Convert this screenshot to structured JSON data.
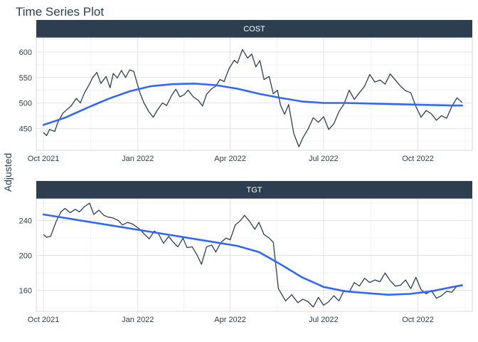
{
  "title": "Time Series Plot",
  "ylabel": "Adjusted",
  "colors": {
    "strip": "#2c3e50",
    "line": "#2c3e50",
    "smooth": "#3366ff"
  },
  "chart_data": [
    {
      "type": "line",
      "facet": "COST",
      "x_ticks": [
        "Oct 2021",
        "Jan 2022",
        "Apr 2022",
        "Jul 2022",
        "Oct 2022"
      ],
      "x_tick_dates": [
        "2021-10-01",
        "2022-01-01",
        "2022-04-01",
        "2022-07-01",
        "2022-10-01"
      ],
      "xlim": [
        "2021-09-24",
        "2022-11-23"
      ],
      "ylim": [
        407,
        628
      ],
      "y_ticks": [
        450,
        500,
        550,
        600
      ],
      "series": [
        {
          "x": [
            "2021-10-01",
            "2021-10-04",
            "2021-10-07",
            "2021-10-12",
            "2021-10-15",
            "2021-10-20",
            "2021-10-25",
            "2021-10-28",
            "2021-11-02",
            "2021-11-06",
            "2021-11-10",
            "2021-11-14",
            "2021-11-18",
            "2021-11-22",
            "2021-11-26",
            "2021-12-01",
            "2021-12-05",
            "2021-12-08",
            "2021-12-12",
            "2021-12-16",
            "2021-12-20",
            "2021-12-24",
            "2021-12-28",
            "2022-01-03",
            "2022-01-07",
            "2022-01-12",
            "2022-01-16",
            "2022-01-20",
            "2022-01-25",
            "2022-01-29",
            "2022-02-03",
            "2022-02-07",
            "2022-02-11",
            "2022-02-15",
            "2022-02-19",
            "2022-02-24",
            "2022-03-01",
            "2022-03-05",
            "2022-03-09",
            "2022-03-14",
            "2022-03-18",
            "2022-03-22",
            "2022-03-26",
            "2022-03-31",
            "2022-04-05",
            "2022-04-08",
            "2022-04-13",
            "2022-04-18",
            "2022-04-22",
            "2022-04-26",
            "2022-04-30",
            "2022-05-04",
            "2022-05-09",
            "2022-05-13",
            "2022-05-17",
            "2022-05-20",
            "2022-05-24",
            "2022-05-28",
            "2022-06-02",
            "2022-06-07",
            "2022-06-11",
            "2022-06-16",
            "2022-06-21",
            "2022-06-26",
            "2022-07-01",
            "2022-07-06",
            "2022-07-11",
            "2022-07-16",
            "2022-07-21",
            "2022-07-26",
            "2022-07-31",
            "2022-08-05",
            "2022-08-10",
            "2022-08-15",
            "2022-08-20",
            "2022-08-25",
            "2022-08-30",
            "2022-09-04",
            "2022-09-09",
            "2022-09-14",
            "2022-09-19",
            "2022-09-24",
            "2022-09-29",
            "2022-10-04",
            "2022-10-09",
            "2022-10-14",
            "2022-10-19",
            "2022-10-24",
            "2022-10-29",
            "2022-11-03",
            "2022-11-08",
            "2022-11-13"
          ],
          "y": [
            442,
            436,
            448,
            444,
            462,
            480,
            489,
            494,
            509,
            500,
            520,
            534,
            550,
            560,
            538,
            552,
            530,
            558,
            549,
            564,
            550,
            565,
            562,
            520,
            500,
            482,
            472,
            486,
            500,
            495,
            515,
            527,
            512,
            516,
            525,
            512,
            505,
            494,
            517,
            528,
            533,
            546,
            542,
            568,
            584,
            578,
            605,
            588,
            596,
            571,
            583,
            546,
            552,
            518,
            525,
            496,
            478,
            497,
            440,
            414,
            432,
            449,
            471,
            462,
            473,
            448,
            459,
            483,
            498,
            525,
            507,
            520,
            533,
            556,
            541,
            545,
            537,
            557,
            545,
            533,
            524,
            520,
            493,
            472,
            485,
            479,
            466,
            475,
            470,
            493,
            510,
            501
          ],
          "smooth_x": [
            "2021-10-01",
            "2021-10-22",
            "2021-11-12",
            "2021-12-03",
            "2021-12-24",
            "2022-01-14",
            "2022-02-04",
            "2022-02-25",
            "2022-03-18",
            "2022-04-08",
            "2022-04-29",
            "2022-05-20",
            "2022-06-10",
            "2022-07-01",
            "2022-07-22",
            "2022-08-12",
            "2022-09-02",
            "2022-09-23",
            "2022-10-14",
            "2022-11-04",
            "2022-11-13"
          ],
          "smooth_y": [
            457,
            471,
            490,
            508,
            523,
            533,
            537,
            538,
            535,
            528,
            518,
            510,
            503,
            500,
            500,
            499,
            498,
            497,
            496,
            495,
            495
          ]
        }
      ]
    },
    {
      "type": "line",
      "facet": "TGT",
      "x_ticks": [
        "Oct 2021",
        "Jan 2022",
        "Apr 2022",
        "Jul 2022",
        "Oct 2022"
      ],
      "x_tick_dates": [
        "2021-10-01",
        "2022-01-01",
        "2022-04-01",
        "2022-07-01",
        "2022-10-01"
      ],
      "xlim": [
        "2021-09-24",
        "2022-11-23"
      ],
      "ylim": [
        136,
        265
      ],
      "y_ticks": [
        160,
        200,
        240
      ],
      "series": [
        {
          "x": [
            "2021-10-01",
            "2021-10-04",
            "2021-10-08",
            "2021-10-13",
            "2021-10-18",
            "2021-10-22",
            "2021-10-27",
            "2021-11-01",
            "2021-11-05",
            "2021-11-10",
            "2021-11-15",
            "2021-11-19",
            "2021-11-24",
            "2021-11-29",
            "2021-12-03",
            "2021-12-08",
            "2021-12-13",
            "2021-12-17",
            "2021-12-22",
            "2021-12-27",
            "2022-01-03",
            "2022-01-07",
            "2022-01-12",
            "2022-01-17",
            "2022-01-21",
            "2022-01-26",
            "2022-01-31",
            "2022-02-04",
            "2022-02-09",
            "2022-02-14",
            "2022-02-18",
            "2022-02-23",
            "2022-02-28",
            "2022-03-04",
            "2022-03-09",
            "2022-03-14",
            "2022-03-18",
            "2022-03-23",
            "2022-03-28",
            "2022-04-01",
            "2022-04-06",
            "2022-04-11",
            "2022-04-15",
            "2022-04-20",
            "2022-04-25",
            "2022-04-29",
            "2022-05-04",
            "2022-05-09",
            "2022-05-13",
            "2022-05-18",
            "2022-05-20",
            "2022-05-25",
            "2022-05-31",
            "2022-06-06",
            "2022-06-11",
            "2022-06-16",
            "2022-06-21",
            "2022-06-26",
            "2022-07-01",
            "2022-07-06",
            "2022-07-11",
            "2022-07-16",
            "2022-07-21",
            "2022-07-26",
            "2022-07-31",
            "2022-08-05",
            "2022-08-10",
            "2022-08-15",
            "2022-08-20",
            "2022-08-25",
            "2022-08-30",
            "2022-09-04",
            "2022-09-09",
            "2022-09-14",
            "2022-09-19",
            "2022-09-24",
            "2022-09-29",
            "2022-10-04",
            "2022-10-09",
            "2022-10-14",
            "2022-10-19",
            "2022-10-24",
            "2022-10-29",
            "2022-11-03",
            "2022-11-08",
            "2022-11-13"
          ],
          "y": [
            224,
            221,
            222,
            238,
            250,
            254,
            249,
            253,
            250,
            256,
            260,
            247,
            252,
            246,
            244,
            243,
            240,
            235,
            238,
            236,
            230,
            225,
            219,
            228,
            225,
            214,
            222,
            216,
            210,
            220,
            209,
            210,
            200,
            190,
            210,
            212,
            204,
            215,
            220,
            218,
            235,
            240,
            246,
            239,
            230,
            238,
            224,
            220,
            215,
            162,
            158,
            148,
            155,
            146,
            150,
            147,
            141,
            152,
            143,
            147,
            154,
            148,
            160,
            158,
            169,
            165,
            174,
            169,
            172,
            170,
            180,
            171,
            165,
            166,
            172,
            162,
            175,
            161,
            156,
            160,
            151,
            154,
            159,
            158,
            165,
            165
          ],
          "smooth_x": [
            "2021-10-01",
            "2021-10-22",
            "2021-11-12",
            "2021-12-03",
            "2021-12-24",
            "2022-01-14",
            "2022-02-04",
            "2022-02-25",
            "2022-03-18",
            "2022-04-08",
            "2022-04-29",
            "2022-05-20",
            "2022-06-10",
            "2022-07-01",
            "2022-07-22",
            "2022-08-12",
            "2022-09-02",
            "2022-09-23",
            "2022-10-14",
            "2022-11-04",
            "2022-11-13"
          ],
          "smooth_y": [
            247,
            243,
            239,
            235,
            231,
            227,
            223,
            219,
            215,
            211,
            204,
            190,
            175,
            164,
            159,
            157,
            155,
            156,
            159,
            164,
            166
          ]
        }
      ]
    }
  ]
}
